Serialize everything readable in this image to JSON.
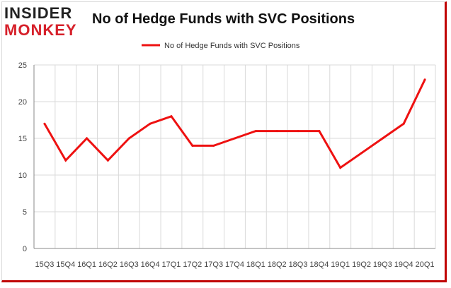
{
  "logo": {
    "top": "INSIDER",
    "bottom": "MONKEY"
  },
  "colors": {
    "line": "#ee1111",
    "frame": "#c00000",
    "grid": "#d9d9d9",
    "axis": "#888888"
  },
  "chart_data": {
    "type": "line",
    "title": "No of Hedge Funds with SVC Positions",
    "xlabel": "",
    "ylabel": "",
    "ylim": [
      0,
      25
    ],
    "yticks": [
      0,
      5,
      10,
      15,
      20,
      25
    ],
    "grid": true,
    "legend": "top-center",
    "categories": [
      "15Q3",
      "15Q4",
      "16Q1",
      "16Q2",
      "16Q3",
      "16Q4",
      "17Q1",
      "17Q2",
      "17Q3",
      "17Q4",
      "18Q1",
      "18Q2",
      "18Q3",
      "18Q4",
      "19Q1",
      "19Q2",
      "19Q3",
      "19Q4",
      "20Q1"
    ],
    "series": [
      {
        "name": "No of Hedge Funds with SVC Positions",
        "values": [
          17,
          12,
          15,
          12,
          15,
          17,
          18,
          14,
          14,
          15,
          16,
          16,
          16,
          16,
          11,
          13,
          15,
          17,
          23
        ]
      }
    ]
  }
}
